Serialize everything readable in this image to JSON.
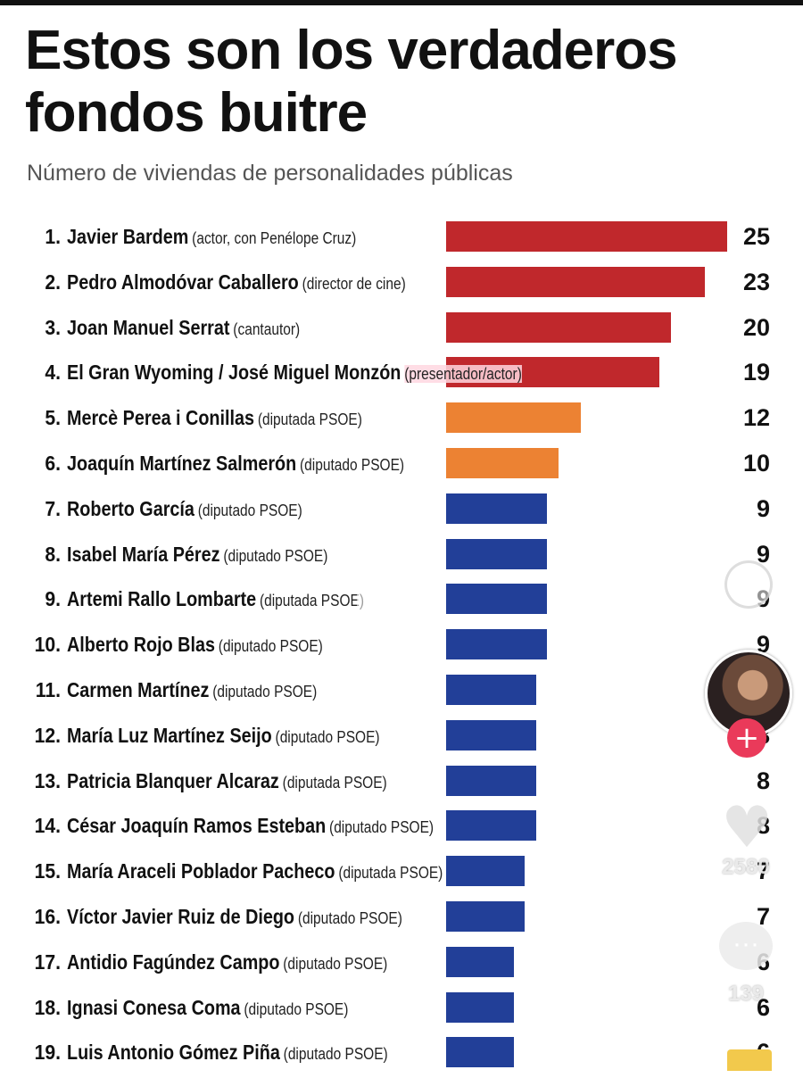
{
  "header": {
    "title": "Estos son los verdaderos fondos buitre",
    "subtitle": "Número de viviendas de personalidades públicas"
  },
  "colors": {
    "red": "#c0282c",
    "orange": "#ec8233",
    "blue": "#223f98",
    "highlight": "#ffd7e1"
  },
  "chart_data": {
    "type": "bar",
    "orientation": "horizontal",
    "title": "Estos son los verdaderos fondos buitre",
    "subtitle": "Número de viviendas de personalidades públicas",
    "xlim": [
      0,
      25
    ],
    "grid": false,
    "legend": "none",
    "rows": [
      {
        "rank": "1.",
        "name": "Javier Bardem",
        "role": "(actor, con Penélope Cruz)",
        "value": 25,
        "color": "red"
      },
      {
        "rank": "2.",
        "name": "Pedro Almodóvar Caballero",
        "role": "(director de cine)",
        "value": 23,
        "color": "red"
      },
      {
        "rank": "3.",
        "name": "Joan Manuel Serrat",
        "role": "(cantautor)",
        "value": 20,
        "color": "red"
      },
      {
        "rank": "4.",
        "name": "El Gran Wyoming / José Miguel Monzón",
        "role": "(presentador/actor)",
        "value": 19,
        "color": "red"
      },
      {
        "rank": "5.",
        "name": "Mercè Perea i Conillas",
        "role": "(diputada PSOE)",
        "value": 12,
        "color": "orange"
      },
      {
        "rank": "6.",
        "name": "Joaquín Martínez Salmerón",
        "role": "(diputado PSOE)",
        "value": 10,
        "color": "orange"
      },
      {
        "rank": "7.",
        "name": "Roberto García",
        "role": "(diputado PSOE)",
        "value": 9,
        "color": "blue"
      },
      {
        "rank": "8.",
        "name": "Isabel María Pérez",
        "role": "(diputado PSOE)",
        "value": 9,
        "color": "blue"
      },
      {
        "rank": "9.",
        "name": "Artemi Rallo Lombarte",
        "role": "(diputada PSOE)",
        "value": 9,
        "color": "blue"
      },
      {
        "rank": "10.",
        "name": "Alberto Rojo Blas",
        "role": "(diputado PSOE)",
        "value": 9,
        "color": "blue"
      },
      {
        "rank": "11.",
        "name": "Carmen Martínez",
        "role": "(diputado PSOE)",
        "value": 8,
        "color": "blue"
      },
      {
        "rank": "12.",
        "name": "María Luz Martínez Seijo",
        "role": "(diputado PSOE)",
        "value": 8,
        "color": "blue"
      },
      {
        "rank": "13.",
        "name": "Patricia Blanquer Alcaraz",
        "role": "(diputada PSOE)",
        "value": 8,
        "color": "blue"
      },
      {
        "rank": "14.",
        "name": "César Joaquín Ramos Esteban",
        "role": "(diputado PSOE)",
        "value": 8,
        "color": "blue"
      },
      {
        "rank": "15.",
        "name": "María Araceli Poblador Pacheco",
        "role": "(diputada PSOE)",
        "value": 7,
        "color": "blue"
      },
      {
        "rank": "16.",
        "name": "Víctor Javier Ruiz de Diego",
        "role": "(diputado PSOE)",
        "value": 7,
        "color": "blue"
      },
      {
        "rank": "17.",
        "name": "Antidio Fagúndez Campo",
        "role": "(diputado PSOE)",
        "value": 6,
        "color": "blue"
      },
      {
        "rank": "18.",
        "name": "Ignasi Conesa Coma",
        "role": "(diputado PSOE)",
        "value": 6,
        "color": "blue"
      },
      {
        "rank": "19.",
        "name": "Luis Antonio Gómez Piña",
        "role": "(diputado PSOE)",
        "value": 6,
        "color": "blue"
      }
    ]
  },
  "overlay": {
    "like_count": "2580",
    "comment_count": "139",
    "follow_symbol": "+",
    "icons": [
      "play-icon",
      "face-icon",
      "heart-icon",
      "comment-icon"
    ]
  }
}
